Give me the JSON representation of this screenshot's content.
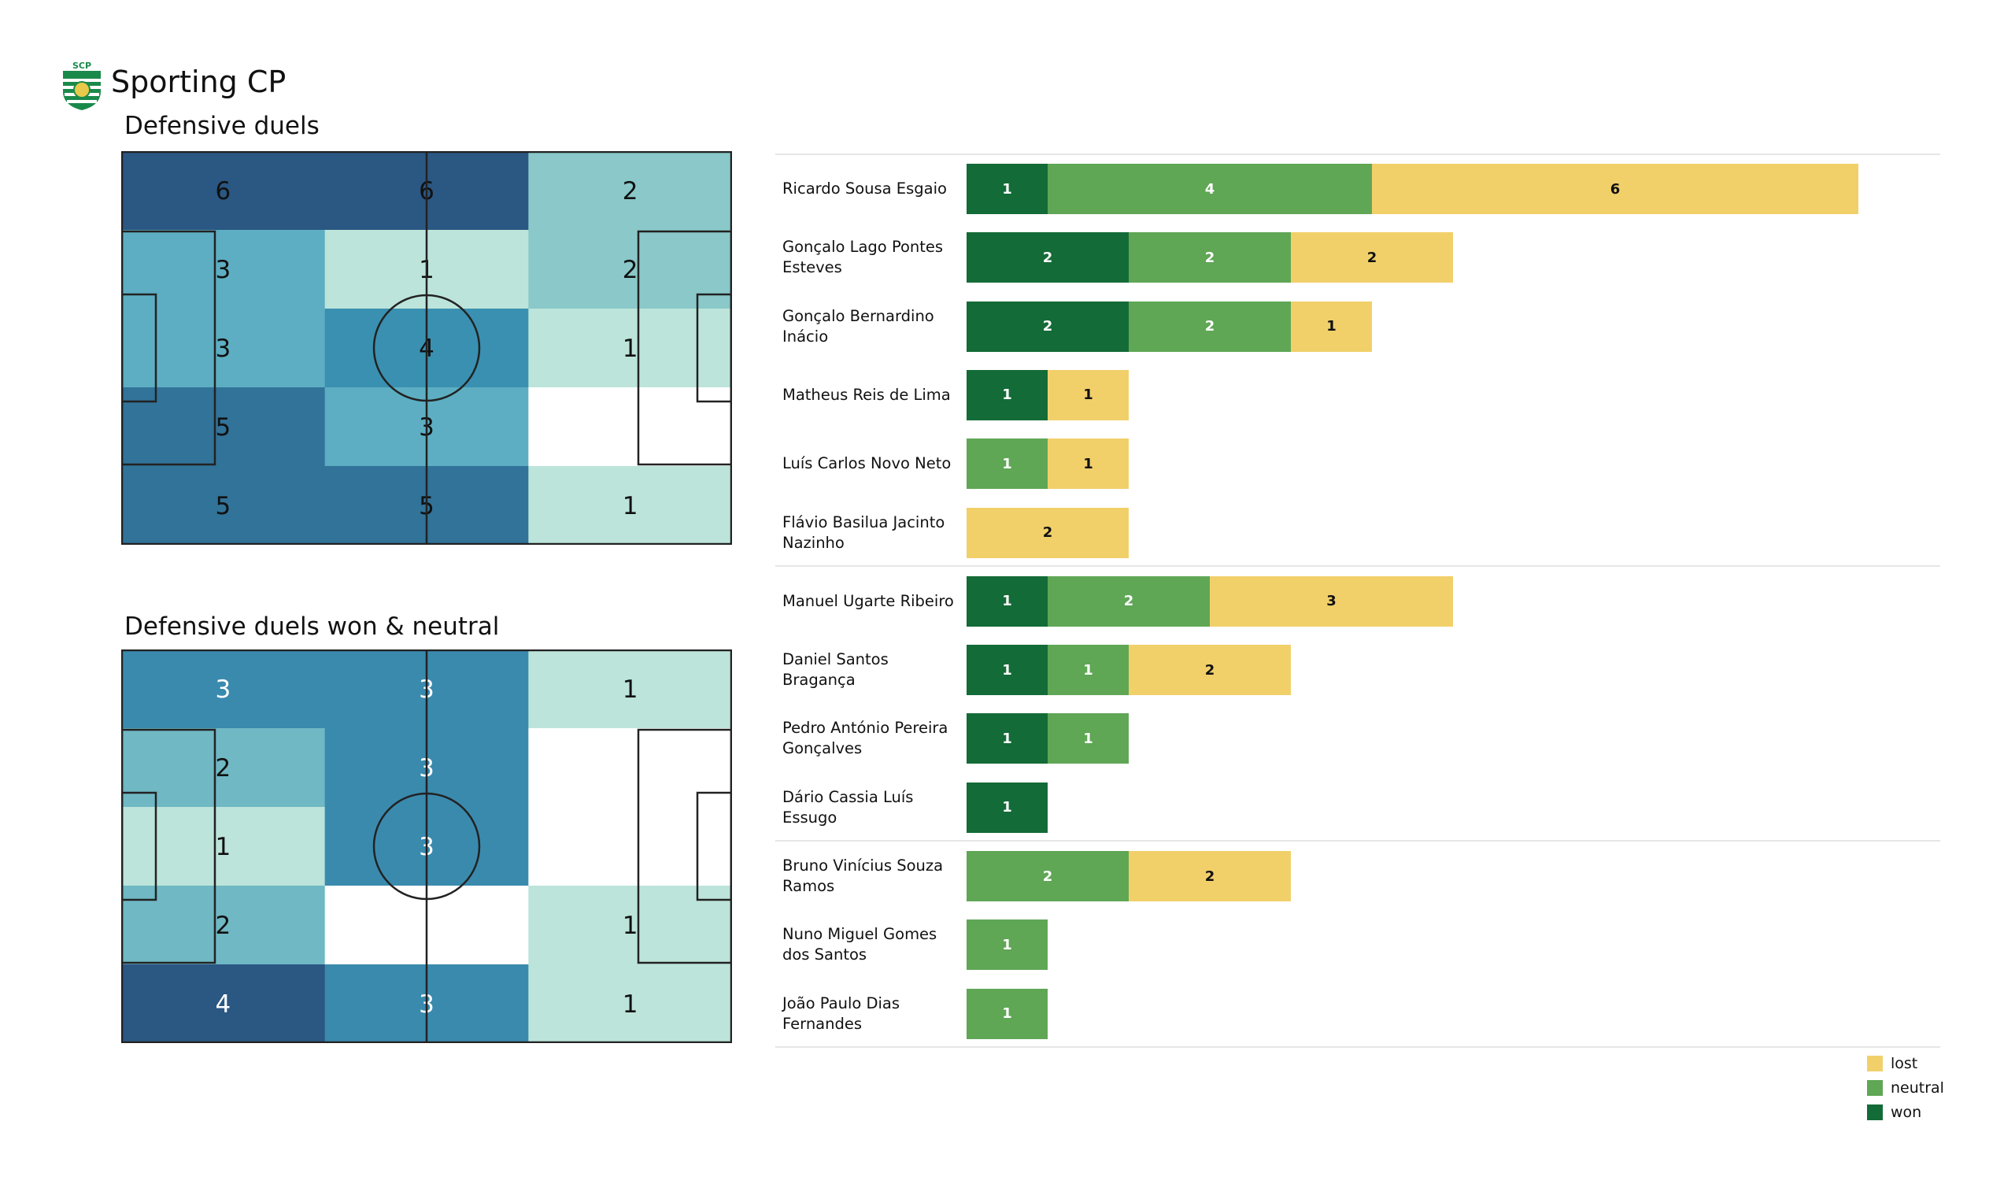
{
  "team": "Sporting CP",
  "colors": {
    "won": "#136b37",
    "neutral": "#5fa655",
    "lost": "#f1d06a"
  },
  "chart_data": [
    {
      "type": "heatmap",
      "title": "Defensive duels",
      "grid": [
        [
          6,
          6,
          2
        ],
        [
          3,
          1,
          2
        ],
        [
          3,
          4,
          1
        ],
        [
          5,
          3,
          0
        ],
        [
          5,
          5,
          1
        ]
      ],
      "colorscale": {
        "0": "#ffffff",
        "1": "#bce4da",
        "2": "#8ac8c9",
        "3": "#5daec2",
        "4": "#3a90b0",
        "5": "#317399",
        "6": "#2b5783"
      }
    },
    {
      "type": "heatmap",
      "title": "Defensive duels won & neutral",
      "grid": [
        [
          3,
          3,
          1
        ],
        [
          2,
          3,
          0
        ],
        [
          1,
          3,
          0
        ],
        [
          2,
          0,
          1
        ],
        [
          4,
          3,
          1
        ]
      ],
      "colorscale": {
        "0": "#ffffff",
        "1": "#bce4da",
        "2": "#6fb8c4",
        "3": "#3a8aae",
        "4": "#2b5783"
      }
    },
    {
      "type": "bar",
      "orientation": "horizontal-stacked",
      "legend": [
        "lost",
        "neutral",
        "won"
      ],
      "legend_position": "bottom-right",
      "groups": [
        [
          {
            "name": "Ricardo Sousa Esgaio",
            "won": 1,
            "neutral": 4,
            "lost": 6
          },
          {
            "name": "Gonçalo Lago Pontes\nEsteves",
            "won": 2,
            "neutral": 2,
            "lost": 2
          },
          {
            "name": "Gonçalo Bernardino\nInácio",
            "won": 2,
            "neutral": 2,
            "lost": 1
          },
          {
            "name": "Matheus Reis de Lima",
            "won": 1,
            "neutral": 0,
            "lost": 1
          },
          {
            "name": "Luís Carlos Novo Neto",
            "won": 0,
            "neutral": 1,
            "lost": 1
          },
          {
            "name": "Flávio Basilua Jacinto\nNazinho",
            "won": 0,
            "neutral": 0,
            "lost": 2
          }
        ],
        [
          {
            "name": "Manuel Ugarte Ribeiro",
            "won": 1,
            "neutral": 2,
            "lost": 3
          },
          {
            "name": "Daniel Santos\nBragança",
            "won": 1,
            "neutral": 1,
            "lost": 2
          },
          {
            "name": "Pedro António Pereira\nGonçalves",
            "won": 1,
            "neutral": 1,
            "lost": 0
          },
          {
            "name": "Dário Cassia Luís\nEssugo",
            "won": 1,
            "neutral": 0,
            "lost": 0
          }
        ],
        [
          {
            "name": "Bruno Vinícius Souza\nRamos",
            "won": 0,
            "neutral": 2,
            "lost": 2
          },
          {
            "name": "Nuno Miguel Gomes\ndos Santos",
            "won": 0,
            "neutral": 1,
            "lost": 0
          },
          {
            "name": "João Paulo Dias\nFernandes",
            "won": 0,
            "neutral": 1,
            "lost": 0
          }
        ]
      ]
    }
  ]
}
